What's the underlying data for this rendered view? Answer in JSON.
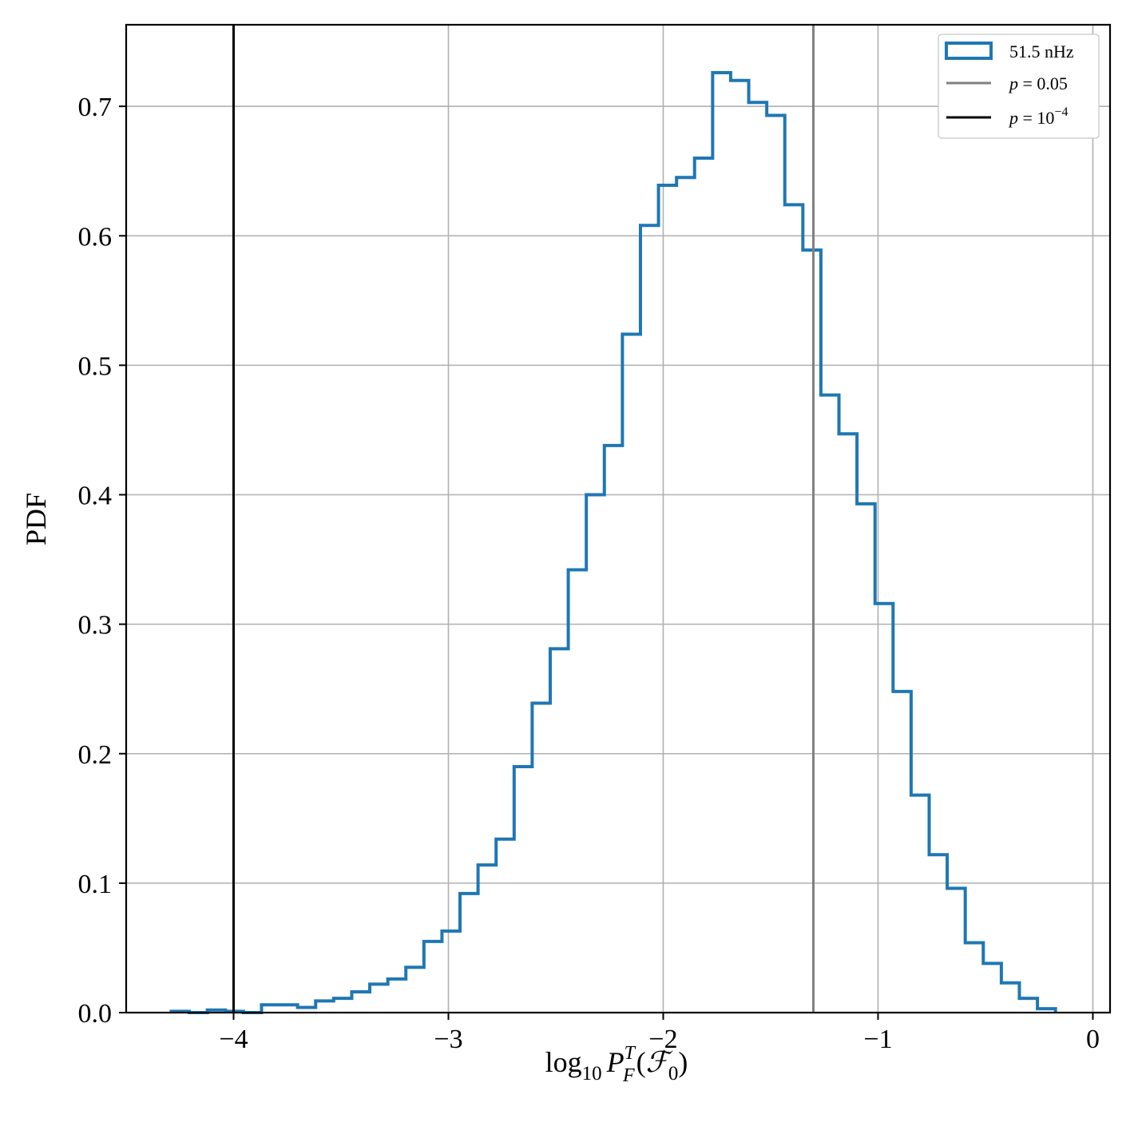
{
  "chart_data": {
    "type": "histogram",
    "title": "",
    "xlabel": {
      "prefix": "log",
      "sub10": "10",
      "P": "P",
      "sup": "T",
      "sub": "F",
      "arg_open": "(",
      "script_F": "ℱ",
      "arg_sub": "0",
      "arg_close": ")"
    },
    "ylabel": "PDF",
    "xlim": [
      -4.5,
      0.08
    ],
    "ylim": [
      0,
      0.763
    ],
    "grid": true,
    "xticks": [
      -4,
      -3,
      -2,
      -1,
      0
    ],
    "xtick_labels": [
      "−4",
      "−3",
      "−2",
      "−1",
      "0"
    ],
    "yticks": [
      0.0,
      0.1,
      0.2,
      0.3,
      0.4,
      0.5,
      0.6,
      0.7
    ],
    "ytick_labels": [
      "0.0",
      "0.1",
      "0.2",
      "0.3",
      "0.4",
      "0.5",
      "0.6",
      "0.7"
    ],
    "legend_position": "top-right",
    "series": [
      {
        "name": "51.5 nHz",
        "kind": "step-histogram",
        "color": "#1f77b4",
        "bin_edges": [
          -4.29,
          -4.206,
          -4.122,
          -4.038,
          -3.954,
          -3.87,
          -3.786,
          -3.702,
          -3.618,
          -3.534,
          -3.45,
          -3.366,
          -3.282,
          -3.198,
          -3.114,
          -3.03,
          -2.946,
          -2.862,
          -2.778,
          -2.694,
          -2.61,
          -2.526,
          -2.442,
          -2.358,
          -2.274,
          -2.19,
          -2.106,
          -2.022,
          -1.938,
          -1.854,
          -1.77,
          -1.686,
          -1.602,
          -1.518,
          -1.434,
          -1.35,
          -1.266,
          -1.182,
          -1.098,
          -1.014,
          -0.93,
          -0.846,
          -0.762,
          -0.678,
          -0.594,
          -0.51,
          -0.426,
          -0.342,
          -0.258,
          -0.174
        ],
        "values": [
          0.001,
          0.0,
          0.002,
          0.001,
          0.0,
          0.006,
          0.006,
          0.004,
          0.009,
          0.011,
          0.016,
          0.022,
          0.026,
          0.035,
          0.055,
          0.063,
          0.092,
          0.114,
          0.134,
          0.19,
          0.239,
          0.281,
          0.342,
          0.4,
          0.438,
          0.524,
          0.608,
          0.639,
          0.645,
          0.66,
          0.726,
          0.72,
          0.703,
          0.693,
          0.624,
          0.589,
          0.477,
          0.447,
          0.393,
          0.316,
          0.248,
          0.168,
          0.122,
          0.096,
          0.054,
          0.038,
          0.023,
          0.011,
          0.003
        ]
      },
      {
        "name": "p = 0.05",
        "name_parts": {
          "var": "p",
          "eq": " = ",
          "val": "0.05"
        },
        "kind": "vline",
        "x": -1.301,
        "color": "#808080"
      },
      {
        "name": "p = 10^-4",
        "name_parts": {
          "var": "p",
          "eq": " = ",
          "base": "10",
          "exp": "−4"
        },
        "kind": "vline",
        "x": -4.0,
        "color": "#000000"
      }
    ]
  }
}
